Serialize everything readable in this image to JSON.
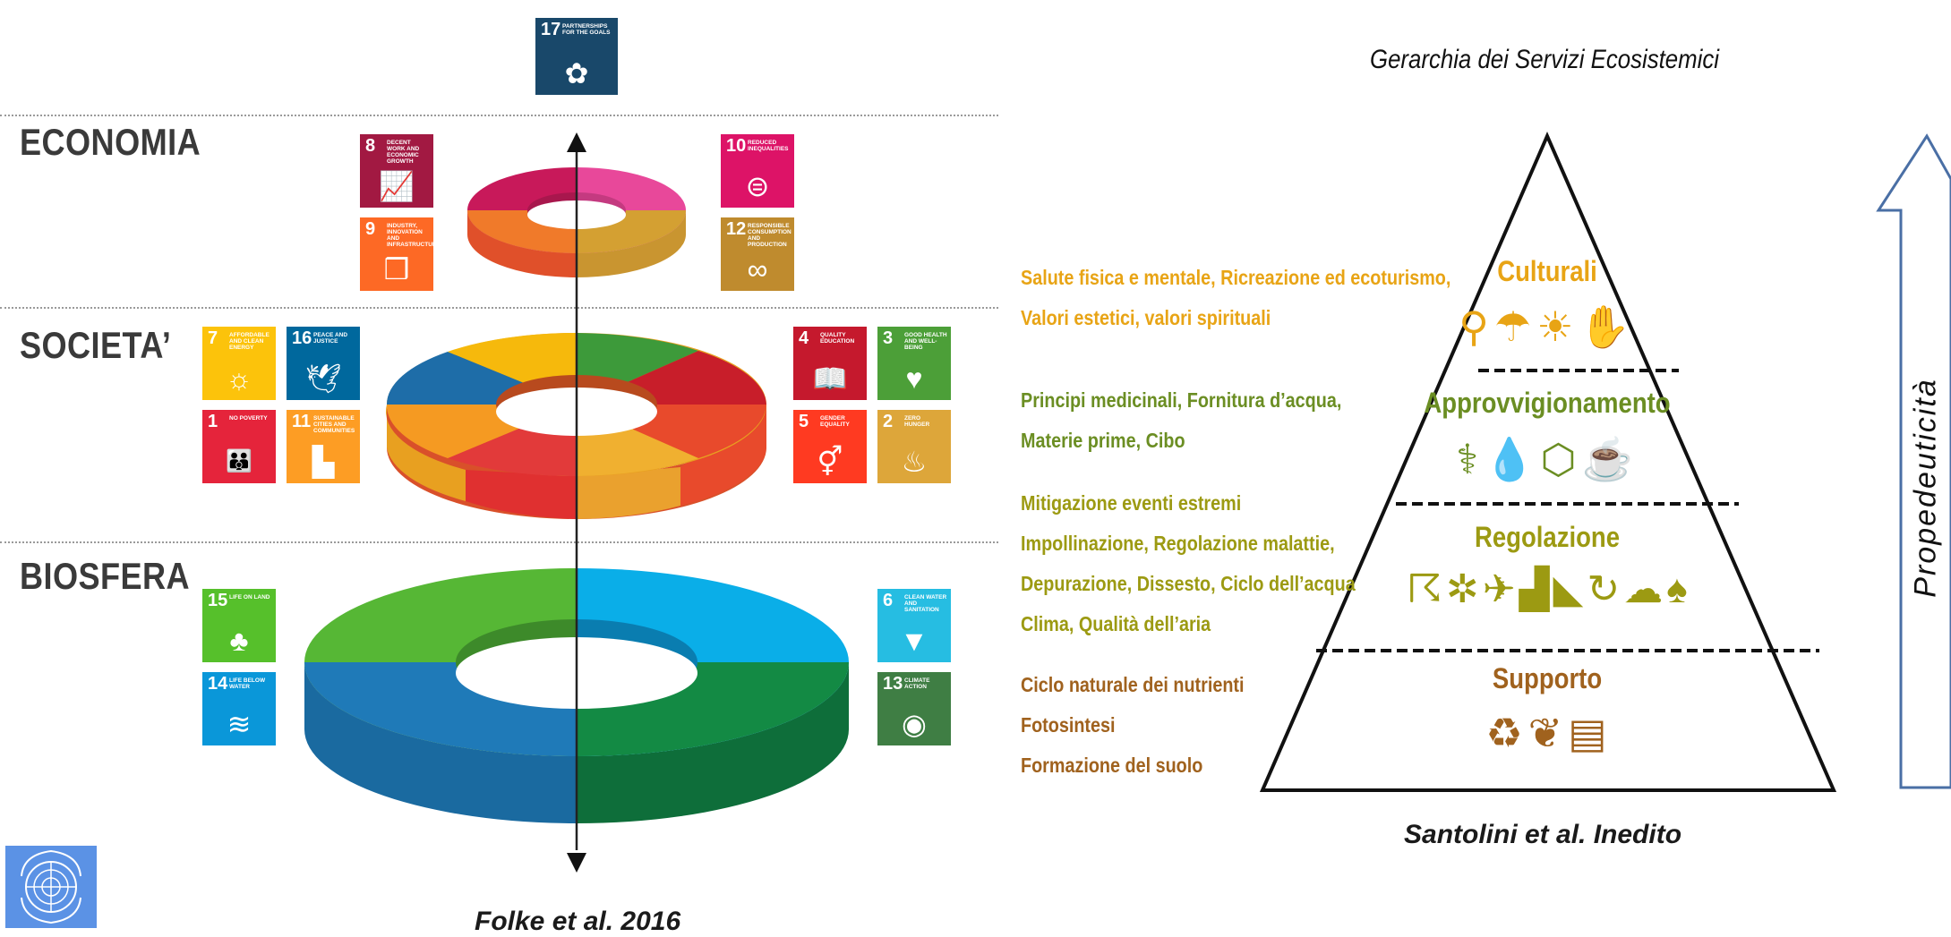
{
  "left_diagram": {
    "layers": {
      "economia": "ECONOMIA",
      "societa": "SOCIETA’",
      "biosfera": "BIOSFERA"
    },
    "sdg_cards": {
      "sdg17": {
        "num": "17",
        "text": "PARTNERSHIPS FOR THE GOALS",
        "color": "#19486A"
      },
      "sdg8": {
        "num": "8",
        "text": "DECENT WORK AND ECONOMIC GROWTH",
        "color": "#A21942"
      },
      "sdg9": {
        "num": "9",
        "text": "INDUSTRY, INNOVATION AND INFRASTRUCTURE",
        "color": "#FD6925"
      },
      "sdg10": {
        "num": "10",
        "text": "REDUCED INEQUALITIES",
        "color": "#DD1367"
      },
      "sdg12": {
        "num": "12",
        "text": "RESPONSIBLE CONSUMPTION AND PRODUCTION",
        "color": "#BF8B2E"
      },
      "sdg7": {
        "num": "7",
        "text": "AFFORDABLE AND CLEAN ENERGY",
        "color": "#FCC30B"
      },
      "sdg16": {
        "num": "16",
        "text": "PEACE AND JUSTICE",
        "color": "#00689D"
      },
      "sdg1": {
        "num": "1",
        "text": "NO POVERTY",
        "color": "#E5243B"
      },
      "sdg11": {
        "num": "11",
        "text": "SUSTAINABLE CITIES AND COMMUNITIES",
        "color": "#FD9D24"
      },
      "sdg4": {
        "num": "4",
        "text": "QUALITY EDUCATION",
        "color": "#C5192D"
      },
      "sdg3": {
        "num": "3",
        "text": "GOOD HEALTH AND WELL-BEING",
        "color": "#4C9F38"
      },
      "sdg5": {
        "num": "5",
        "text": "GENDER EQUALITY",
        "color": "#FF3A21"
      },
      "sdg2": {
        "num": "2",
        "text": "ZERO HUNGER",
        "color": "#DDA63A"
      },
      "sdg15": {
        "num": "15",
        "text": "LIFE ON LAND",
        "color": "#56C02B"
      },
      "sdg14": {
        "num": "14",
        "text": "LIFE BELOW WATER",
        "color": "#0A97D9"
      },
      "sdg6": {
        "num": "6",
        "text": "CLEAN WATER AND SANITATION",
        "color": "#26BDE2"
      },
      "sdg13": {
        "num": "13",
        "text": "CLIMATE ACTION",
        "color": "#3F7E44"
      }
    },
    "caption": "Folke et al. 2016"
  },
  "right_diagram": {
    "title": "Gerarchia dei Servizi Ecosistemici",
    "tiers": {
      "culturali": "Culturali",
      "approvvigionamento": "Approvvigionamento",
      "regolazione": "Regolazione",
      "supporto": "Supporto"
    },
    "services": {
      "culturali": [
        "Salute fisica e mentale, Ricreazione ed ecoturismo,",
        "Valori estetici, valori spirituali"
      ],
      "approvvigionamento": [
        "Principi medicinali, Fornitura d’acqua,",
        "Materie prime, Cibo"
      ],
      "regolazione": [
        "Mitigazione eventi estremi",
        "Impollinazione, Regolazione malattie,",
        "Depurazione, Dissesto, Ciclo dell’acqua",
        "Clima, Qualità dell’aria"
      ],
      "supporto": [
        "Ciclo naturale dei nutrienti",
        "Fotosintesi",
        "Formazione del suolo"
      ]
    },
    "arrow_label": "Propedeuticità",
    "caption": "Santolini et al. Inedito"
  },
  "colors": {
    "culturali": "#E8A415",
    "approvvigionamento": "#6B8E23",
    "regolazione": "#9C9A12",
    "supporto": "#A0621E"
  }
}
